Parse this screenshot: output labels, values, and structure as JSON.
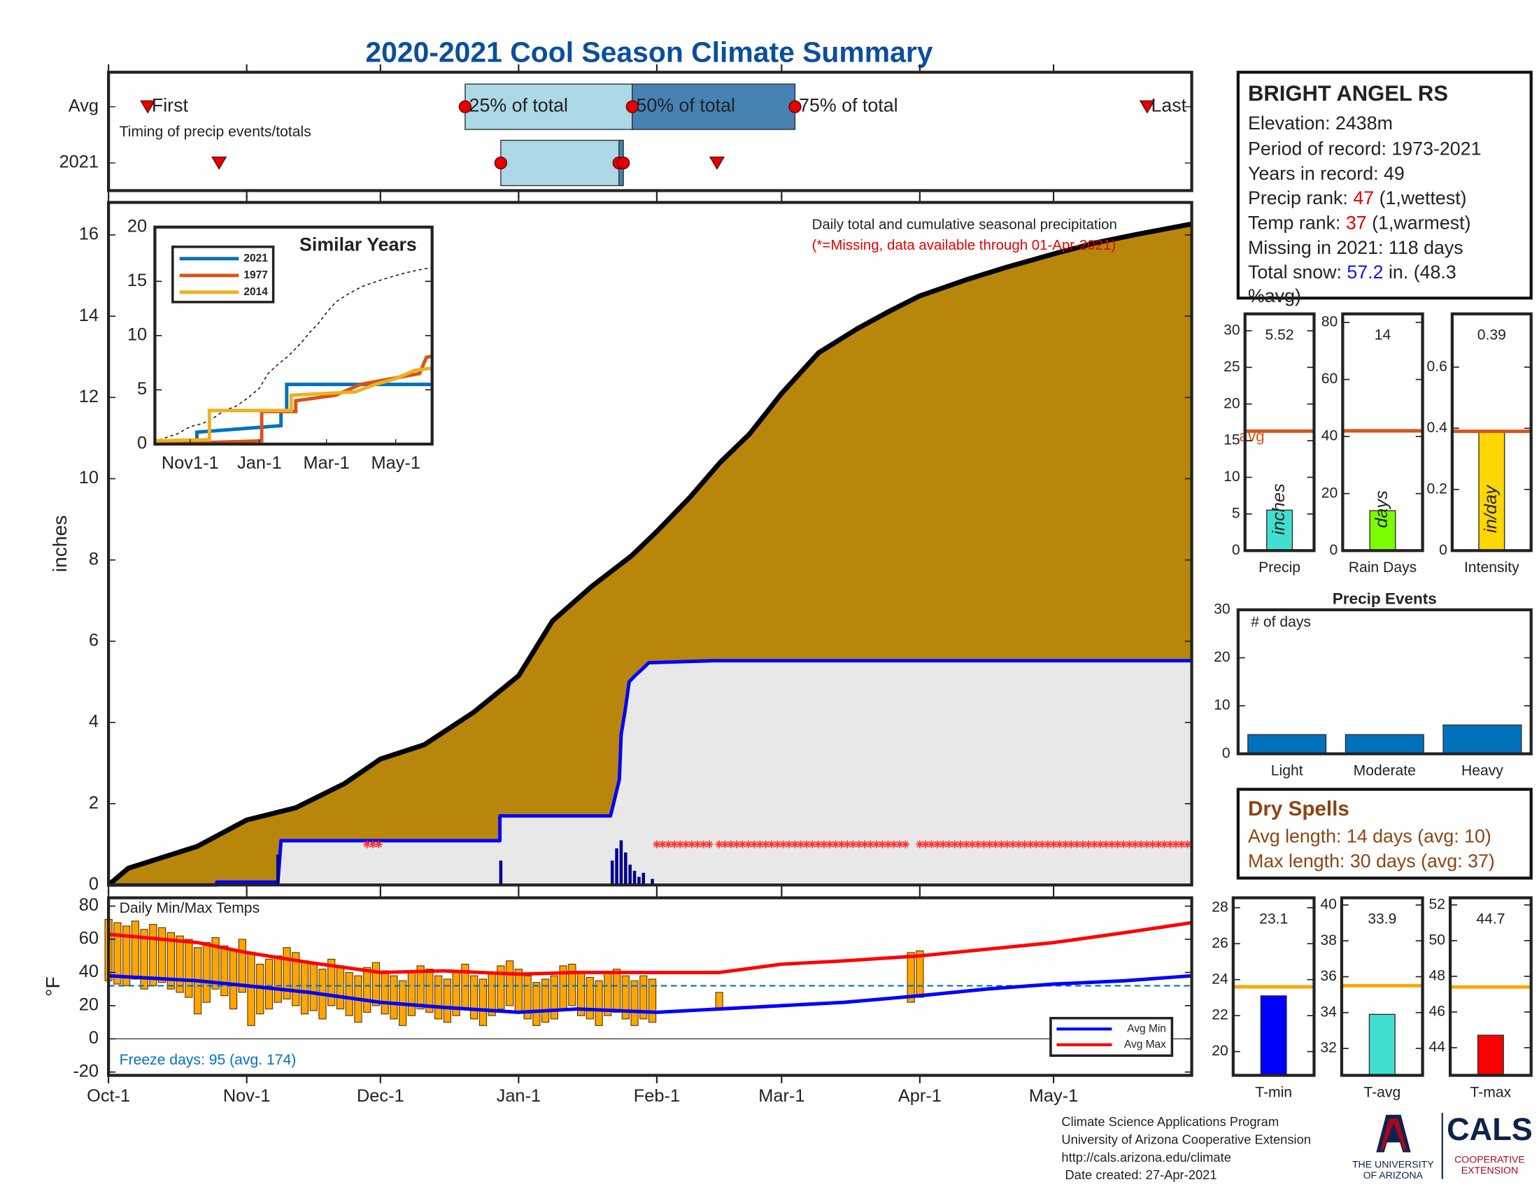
{
  "chart_data": [
    {
      "type": "timing",
      "title": "2020-2021 Cool Season Climate Summary",
      "note": "Timing of precip events/totals",
      "labels": {
        "first": "First",
        "q25": "25% of total",
        "q50": "50% of total",
        "q75": "75% of total",
        "last": "Last"
      },
      "colors": {
        "early": "#add8e6",
        "late": "#4682b4",
        "marker": "#e60000"
      },
      "rows": [
        {
          "name": "Avg",
          "first": 8.8,
          "q25": 80,
          "q50": 117.5,
          "q75": 154,
          "last": 233
        },
        {
          "name": "2021",
          "first": 24.8,
          "q25": 88,
          "q50": 114.5,
          "q75": 115.5,
          "last": 136.5
        }
      ]
    },
    {
      "type": "area",
      "ylabel": "inches",
      "annotation": "Daily total and cumulative seasonal precipitation",
      "missing_note": "(*=Missing, data available through 01-Apr-2021)",
      "ylim": [
        0,
        16.8
      ],
      "yticks": [
        0,
        2,
        4,
        6,
        8,
        10,
        12,
        14,
        16
      ],
      "series": [
        {
          "fill": "#b8860b",
          "color": "#000000",
          "x": [
            0,
            4.4,
            19.9,
            31,
            42,
            53,
            61,
            70.8,
            81.9,
            92,
            99.6,
            108.4,
            117.3,
            123,
            130.5,
            137.2,
            143.8,
            151,
            159.3,
            168.1,
            174.8,
            182,
            192.5,
            201.3,
            212.6,
            221.2,
            230,
            243
          ],
          "values": [
            0,
            0.41,
            0.95,
            1.6,
            1.9,
            2.5,
            3.1,
            3.45,
            4.25,
            5.15,
            6.5,
            7.35,
            8.1,
            8.7,
            9.55,
            10.4,
            11.1,
            12.1,
            13.1,
            13.7,
            14.1,
            14.5,
            14.9,
            15.2,
            15.55,
            15.8,
            16.0,
            16.27
          ]
        },
        {
          "fill": "#e8e8e8",
          "color": "#0000ff",
          "x": [
            0,
            24.3,
            24.3,
            38,
            38.7,
            87.8,
            87.8,
            112.6,
            113,
            114.6,
            115,
            115.9,
            116.8,
            118.1,
            119.9,
            121.2,
            135.8,
            243
          ],
          "values": [
            0,
            0,
            0.07,
            0.07,
            1.09,
            1.09,
            1.7,
            1.7,
            1.87,
            2.6,
            3.7,
            4.3,
            5.0,
            5.15,
            5.33,
            5.47,
            5.52,
            5.52
          ]
        }
      ],
      "daily": {
        "color": "#00008b",
        "x": [
          38,
          88,
          113,
          114,
          115,
          116,
          117,
          118,
          119,
          120,
          122
        ],
        "values": [
          0.75,
          0.6,
          0.6,
          0.9,
          1.1,
          0.8,
          0.5,
          0.35,
          0.2,
          0.3,
          0.15
        ]
      },
      "missing_ranges": [
        [
          58,
          61
        ],
        [
          123,
          135
        ],
        [
          137,
          180
        ],
        [
          182,
          243
        ]
      ],
      "missing_level": 1,
      "missing_color": "#ff3333"
    },
    {
      "type": "line",
      "title": "Similar Years",
      "xlim": [
        0,
        244
      ],
      "xticks": [
        {
          "value": 31,
          "label": "Nov1-1"
        },
        {
          "value": 92,
          "label": "Jan-1"
        },
        {
          "value": 151,
          "label": "Mar-1"
        },
        {
          "value": 212,
          "label": "May-1"
        }
      ],
      "ylim": [
        0,
        20
      ],
      "yticks": [
        0,
        5,
        10,
        15,
        20
      ],
      "legend": "upper left",
      "series": [
        {
          "name": "2021",
          "color": "#0072bd",
          "x": [
            0,
            37,
            37,
            111,
            111,
            116,
            116,
            244
          ],
          "values": [
            0.2,
            0.2,
            1.1,
            1.7,
            3.0,
            3.0,
            5.5,
            5.5
          ]
        },
        {
          "name": "1977",
          "color": "#d95319",
          "x": [
            0,
            94,
            94,
            124,
            124,
            159,
            181,
            207,
            233,
            239,
            244
          ],
          "values": [
            0,
            0.3,
            3.0,
            3.0,
            4.0,
            4.5,
            5.5,
            6.0,
            6.5,
            8.0,
            8.1
          ]
        },
        {
          "name": "2014",
          "color": "#edb120",
          "x": [
            0,
            48,
            48,
            120,
            120,
            176,
            194,
            211,
            229,
            244
          ],
          "values": [
            0.3,
            0.4,
            3.1,
            3.1,
            4.5,
            4.8,
            5.5,
            6.0,
            6.8,
            7.0
          ]
        }
      ]
    },
    {
      "type": "range-bar",
      "label": "Daily Min/Max Temps",
      "ylabel": "°F",
      "xlim": [
        0,
        243
      ],
      "xticks": [
        {
          "value": 0,
          "label": "Oct-1"
        },
        {
          "value": 31,
          "label": "Nov-1"
        },
        {
          "value": 61,
          "label": "Dec-1"
        },
        {
          "value": 92,
          "label": "Jan-1"
        },
        {
          "value": 123,
          "label": "Feb-1"
        },
        {
          "value": 151,
          "label": "Mar-1"
        },
        {
          "value": 182,
          "label": "Apr-1"
        },
        {
          "value": 212,
          "label": "May-1"
        }
      ],
      "ylim": [
        -22,
        85
      ],
      "yticks": [
        -20,
        0,
        20,
        40,
        60,
        80
      ],
      "freeze_level": 32,
      "freeze_color": "#0072bd",
      "freeze_note": "Freeze days: 95 (avg. 174)",
      "legend": "lower right",
      "daily": {
        "color": "#ffa500",
        "x": [
          0,
          2,
          4,
          6,
          8,
          10,
          12,
          14,
          16,
          18,
          20,
          22,
          24,
          26,
          28,
          30,
          32,
          34,
          36,
          38,
          40,
          42,
          44,
          46,
          48,
          50,
          52,
          54,
          56,
          58,
          60,
          62,
          64,
          66,
          68,
          70,
          72,
          74,
          76,
          78,
          80,
          82,
          84,
          86,
          88,
          90,
          92,
          94,
          96,
          98,
          100,
          102,
          104,
          106,
          108,
          110,
          112,
          114,
          116,
          118,
          120,
          122,
          137,
          180,
          182
        ],
        "min": [
          35,
          33,
          32,
          36,
          30,
          32,
          34,
          30,
          28,
          25,
          15,
          22,
          30,
          26,
          18,
          28,
          8,
          15,
          18,
          22,
          24,
          20,
          15,
          17,
          12,
          20,
          18,
          14,
          10,
          16,
          20,
          15,
          12,
          8,
          14,
          18,
          16,
          12,
          10,
          14,
          18,
          12,
          8,
          14,
          18,
          20,
          16,
          12,
          8,
          10,
          12,
          18,
          20,
          14,
          12,
          8,
          14,
          16,
          12,
          8,
          12,
          10,
          18,
          22,
          25
        ],
        "max": [
          72,
          70,
          68,
          71,
          66,
          69,
          67,
          64,
          62,
          60,
          55,
          58,
          61,
          56,
          53,
          60,
          52,
          45,
          48,
          50,
          55,
          52,
          47,
          45,
          42,
          48,
          44,
          40,
          38,
          43,
          46,
          41,
          38,
          35,
          40,
          44,
          42,
          38,
          36,
          40,
          45,
          38,
          36,
          40,
          44,
          47,
          42,
          38,
          34,
          36,
          38,
          44,
          45,
          40,
          37,
          35,
          40,
          42,
          38,
          35,
          38,
          36,
          28,
          52,
          53
        ]
      },
      "series": [
        {
          "name": "Avg Min",
          "color": "#0000ff",
          "x": [
            0,
            20,
            31,
            45,
            61,
            75,
            92,
            105,
            123,
            137,
            151,
            165,
            182,
            197,
            212,
            228,
            243
          ],
          "values": [
            38,
            35,
            32,
            28,
            22,
            19,
            16,
            18,
            16,
            18,
            20,
            22,
            26,
            30,
            33,
            35,
            38
          ]
        },
        {
          "name": "Avg Max",
          "color": "#ff0000",
          "x": [
            0,
            20,
            31,
            45,
            61,
            75,
            92,
            105,
            123,
            137,
            151,
            165,
            182,
            197,
            212,
            228,
            243
          ],
          "values": [
            63,
            58,
            52,
            46,
            40,
            41,
            39,
            40,
            40,
            40,
            45,
            47,
            50,
            54,
            58,
            64,
            70
          ]
        }
      ]
    },
    {
      "type": "single-bar",
      "category": "Precip",
      "value": 5.52,
      "avg": 16.3,
      "avg_label": "avg",
      "avg_color": "#d95319",
      "unit": "inches",
      "color": "#40e0d0",
      "ylim": [
        0,
        32.3
      ],
      "yticks": [
        0,
        5,
        10,
        15,
        20,
        25,
        30
      ]
    },
    {
      "type": "single-bar",
      "category": "Rain Days",
      "value": 14,
      "avg": 42,
      "avg_color": "#d95319",
      "unit": "days",
      "color": "#7cfc00",
      "ylim": [
        0,
        83
      ],
      "yticks": [
        0,
        20,
        40,
        60,
        80
      ]
    },
    {
      "type": "single-bar",
      "category": "Intensity",
      "value": 0.39,
      "avg": 0.39,
      "avg_color": "#d95319",
      "unit": "in/day",
      "color": "#ffd700",
      "ylim": [
        0,
        0.774
      ],
      "yticks": [
        0,
        0.2,
        0.4,
        0.6
      ]
    },
    {
      "type": "bar",
      "title": "Precip Events",
      "ylabel": "# of days",
      "categories": [
        "Light",
        "Moderate",
        "Heavy"
      ],
      "values": [
        4,
        4,
        6
      ],
      "color": "#0072bd",
      "ylim": [
        0,
        30
      ],
      "yticks": [
        0,
        10,
        20,
        30
      ]
    },
    {
      "type": "single-bar",
      "category": "T-min",
      "value": 23.1,
      "avg": 23.6,
      "avg_color": "#ffa500",
      "color": "#0000ff",
      "ylim": [
        18.68,
        28.55
      ],
      "yticks": [
        20,
        22,
        24,
        26,
        28
      ]
    },
    {
      "type": "single-bar",
      "category": "T-avg",
      "value": 33.9,
      "avg": 35.5,
      "avg_color": "#ffa500",
      "color": "#40e0d0",
      "ylim": [
        30.5,
        40.4
      ],
      "yticks": [
        32,
        34,
        36,
        38,
        40
      ]
    },
    {
      "type": "single-bar",
      "category": "T-max",
      "value": 44.7,
      "avg": 47.4,
      "avg_color": "#ffa500",
      "color": "#ff0000",
      "ylim": [
        42.45,
        52.4
      ],
      "yticks": [
        44,
        46,
        48,
        50,
        52
      ]
    }
  ],
  "info": {
    "station": "BRIGHT ANGEL RS",
    "elevation": "Elevation: 2438m",
    "period": "Period of record: 1973-2021",
    "years": "Years in record: 49",
    "precip_rank_label": "Precip rank:",
    "precip_rank": 47,
    "precip_rank_note": "(1,wettest)",
    "temp_rank_label": "Temp rank:",
    "temp_rank": 37,
    "temp_rank_note": "(1,warmest)",
    "missing": "Missing in 2021: 118 days",
    "snow_label": "Total snow:",
    "snow": 57.2,
    "snow_note": [
      "in. (48.3",
      "%avg)"
    ]
  },
  "dry_spells": {
    "title": "Dry Spells",
    "avg": "Avg length: 14 days (avg: 10)",
    "max": "Max length: 30 days (avg: 37)"
  },
  "footer": [
    "Climate Science Applications Program",
    "University of Arizona Cooperative Extension",
    "http://cals.arizona.edu/climate",
    " Date created: 27-Apr-2021"
  ],
  "logo": {
    "university": [
      "THE UNIVERSITY",
      "OF ARIZONA"
    ],
    "cals": "CALS",
    "extension": [
      "COOPERATIVE",
      "EXTENSION"
    ]
  }
}
